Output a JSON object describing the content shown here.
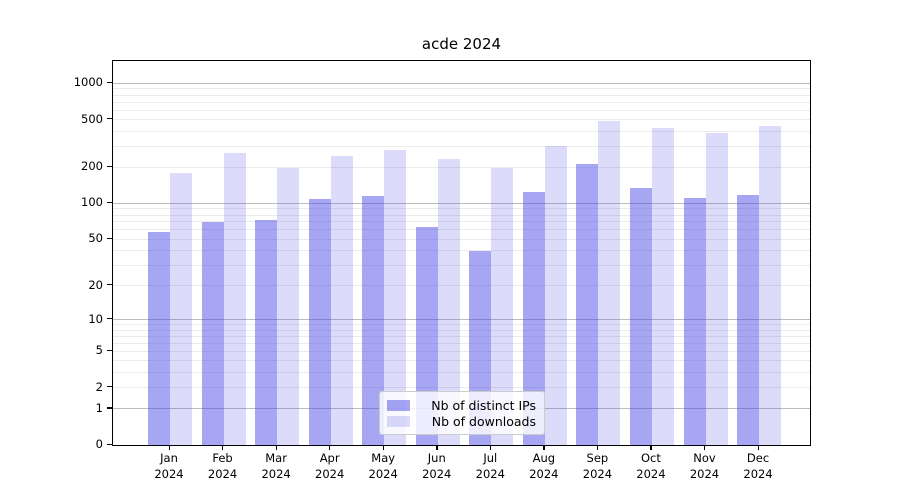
{
  "chart_data": {
    "type": "bar",
    "title": "acde 2024",
    "categories": [
      "Jan",
      "Feb",
      "Mar",
      "Apr",
      "May",
      "Jun",
      "Jul",
      "Aug",
      "Sep",
      "Oct",
      "Nov",
      "Dec"
    ],
    "year_label": "2024",
    "series": [
      {
        "name": "Nb of distinct IPs",
        "color": "rgba(70,70,230,0.48)",
        "values": [
          58,
          70,
          72,
          110,
          116,
          63,
          40,
          125,
          215,
          135,
          112,
          117
        ]
      },
      {
        "name": "Nb of downloads",
        "color": "rgba(70,70,230,0.19)",
        "values": [
          180,
          265,
          199,
          250,
          278,
          237,
          199,
          300,
          490,
          428,
          388,
          440
        ]
      }
    ],
    "y_scale": "log1p",
    "ylim": [
      0,
      1500
    ],
    "y_ticks": [
      0,
      1,
      2,
      5,
      10,
      20,
      50,
      100,
      200,
      500,
      1000
    ],
    "grid": {
      "major_levels": [
        1,
        10,
        100,
        1000
      ],
      "minor_multipliers": [
        2,
        3,
        4,
        5,
        6,
        7,
        8,
        9
      ],
      "major_color": "#bdbdbd",
      "minor_color": "#ebebeb"
    },
    "legend_position": "lower center"
  }
}
